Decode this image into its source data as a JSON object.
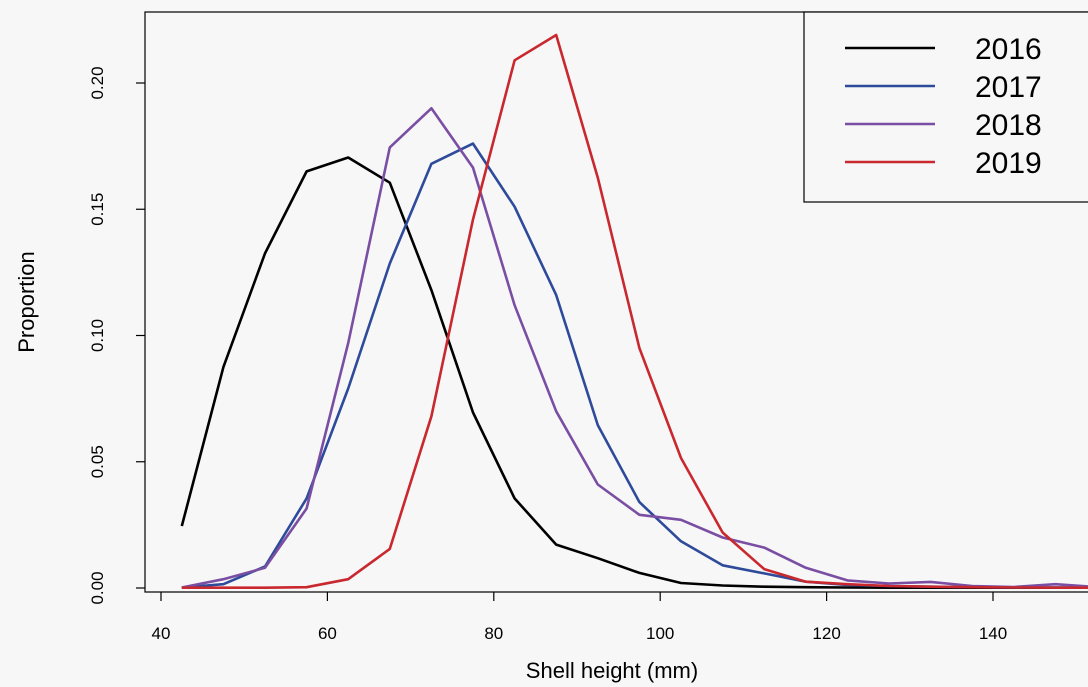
{
  "chart_data": {
    "type": "line",
    "title": "",
    "xlabel": "Shell height (mm)",
    "ylabel": "Proportion",
    "xlim": [
      40,
      150
    ],
    "ylim": [
      0,
      0.22
    ],
    "x_ticks": [
      40,
      60,
      80,
      100,
      120,
      140
    ],
    "y_ticks": [
      0.0,
      0.05,
      0.1,
      0.15,
      0.2
    ],
    "x_tick_labels": [
      "40",
      "60",
      "80",
      "100",
      "120",
      "140"
    ],
    "y_tick_labels": [
      "0.00",
      "0.05",
      "0.10",
      "0.15",
      "0.20"
    ],
    "grid": false,
    "legend_position": "top-right",
    "x": [
      42.5,
      47.5,
      52.5,
      57.5,
      62.5,
      67.5,
      72.5,
      77.5,
      82.5,
      87.5,
      92.5,
      97.5,
      102.5,
      107.5,
      112.5,
      117.5,
      122.5,
      127.5,
      132.5,
      137.5,
      142.5,
      147.5,
      152.5
    ],
    "series": [
      {
        "name": "2016",
        "color": "#000000",
        "values": [
          0.0245,
          0.0875,
          0.1325,
          0.165,
          0.1705,
          0.1605,
          0.118,
          0.0695,
          0.0355,
          0.0172,
          0.0118,
          0.006,
          0.002,
          0.001,
          0.0005,
          0.0003,
          0.0002,
          0.0001,
          0.0001,
          0.0001,
          0.0001,
          0.0001,
          0.0001
        ]
      },
      {
        "name": "2017",
        "color": "#2e4a9a",
        "values": [
          0.0002,
          0.0015,
          0.0085,
          0.0355,
          0.079,
          0.1285,
          0.168,
          0.176,
          0.151,
          0.116,
          0.0645,
          0.034,
          0.0185,
          0.009,
          0.0058,
          0.0025,
          0.0012,
          0.0008,
          0.0005,
          0.0003,
          0.0002,
          0.0002,
          0.0001
        ]
      },
      {
        "name": "2018",
        "color": "#7a4ea3",
        "values": [
          0.0002,
          0.0035,
          0.008,
          0.0315,
          0.097,
          0.1745,
          0.19,
          0.1665,
          0.112,
          0.07,
          0.041,
          0.029,
          0.027,
          0.02,
          0.016,
          0.008,
          0.003,
          0.0018,
          0.0024,
          0.0008,
          0.0004,
          0.0015,
          0.0004
        ]
      },
      {
        "name": "2019",
        "color": "#c8282e",
        "values": [
          0.0001,
          0.0001,
          0.0001,
          0.0003,
          0.0035,
          0.0155,
          0.068,
          0.146,
          0.209,
          0.219,
          0.1625,
          0.095,
          0.0515,
          0.022,
          0.0075,
          0.0025,
          0.0015,
          0.0008,
          0.0005,
          0.0003,
          0.0002,
          0.0001,
          0.0001
        ]
      }
    ]
  }
}
